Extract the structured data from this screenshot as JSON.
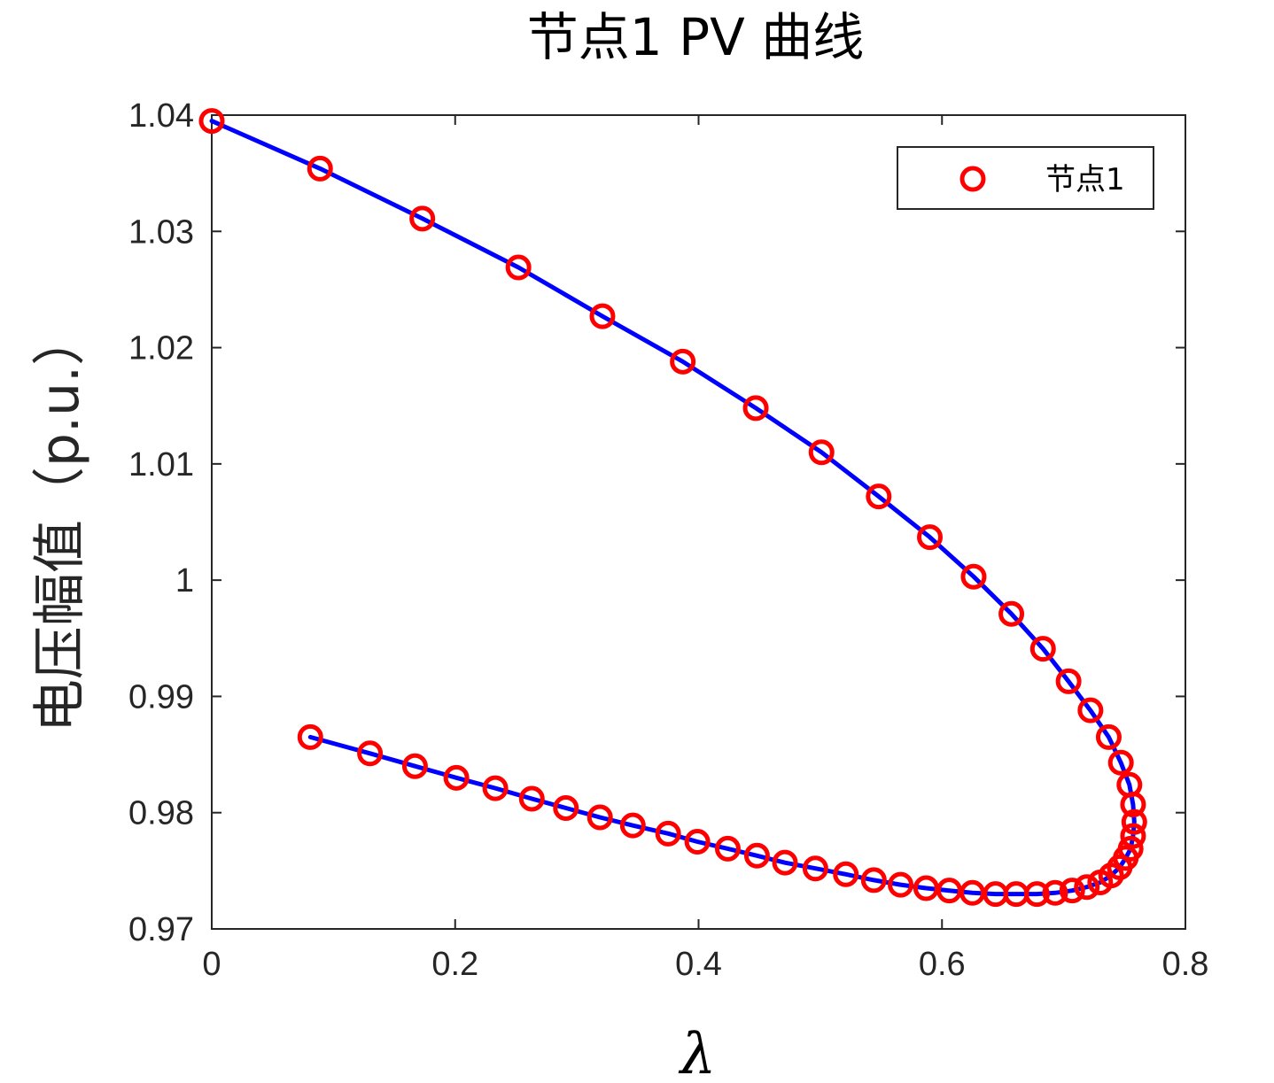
{
  "chart_data": {
    "type": "line",
    "title": "节点1 PV 曲线",
    "xlabel": "λ",
    "ylabel": "电压幅值（p.u.）",
    "xlim": [
      0,
      0.8
    ],
    "ylim": [
      0.97,
      1.04
    ],
    "xticks": [
      0,
      0.2,
      0.4,
      0.6,
      0.8
    ],
    "xtick_labels": [
      "0",
      "0.2",
      "0.4",
      "0.6",
      "0.8"
    ],
    "yticks": [
      0.97,
      0.98,
      0.99,
      1.0,
      1.01,
      1.02,
      1.03,
      1.04
    ],
    "ytick_labels": [
      "0.97",
      "0.98",
      "0.99",
      "1",
      "1.01",
      "1.02",
      "1.03",
      "1.04"
    ],
    "grid": false,
    "legend": {
      "position": "top-right",
      "entries": [
        "节点1"
      ]
    },
    "colors": {
      "markers": "#ff0000",
      "curve": "#0000ff",
      "axes": "#262626"
    },
    "series": [
      {
        "name": "节点1",
        "style": "markers",
        "marker": "circle",
        "x": [
          0.0,
          0.089,
          0.173,
          0.252,
          0.321,
          0.387,
          0.447,
          0.501,
          0.548,
          0.59,
          0.626,
          0.657,
          0.683,
          0.704,
          0.722,
          0.737,
          0.747,
          0.754,
          0.757,
          0.758,
          0.757,
          0.755,
          0.751,
          0.746,
          0.739,
          0.73,
          0.719,
          0.707,
          0.693,
          0.678,
          0.661,
          0.644,
          0.625,
          0.606,
          0.587,
          0.566,
          0.544,
          0.521,
          0.496,
          0.471,
          0.448,
          0.424,
          0.399,
          0.375,
          0.346,
          0.319,
          0.291,
          0.263,
          0.233,
          0.201,
          0.167,
          0.13,
          0.081
        ],
        "y": [
          1.0395,
          1.0354,
          1.0311,
          1.0269,
          1.0227,
          1.0188,
          1.0148,
          1.011,
          1.0072,
          1.0037,
          1.0003,
          0.9971,
          0.9941,
          0.9913,
          0.9888,
          0.9865,
          0.9843,
          0.9824,
          0.9807,
          0.9792,
          0.978,
          0.9769,
          0.9761,
          0.9753,
          0.9746,
          0.974,
          0.9736,
          0.9733,
          0.9731,
          0.973,
          0.973,
          0.973,
          0.9731,
          0.9733,
          0.9735,
          0.9738,
          0.9742,
          0.9747,
          0.9752,
          0.9757,
          0.9763,
          0.9769,
          0.9775,
          0.9782,
          0.9789,
          0.9796,
          0.9804,
          0.9812,
          0.9821,
          0.983,
          0.984,
          0.9851,
          0.9865
        ]
      },
      {
        "name": "",
        "style": "line",
        "x": [
          0.0,
          0.089,
          0.173,
          0.252,
          0.321,
          0.387,
          0.447,
          0.501,
          0.548,
          0.59,
          0.626,
          0.657,
          0.683,
          0.704,
          0.722,
          0.737,
          0.747,
          0.754,
          0.757,
          0.758,
          0.757,
          0.755,
          0.751,
          0.746,
          0.739,
          0.73,
          0.719,
          0.707,
          0.693,
          0.678,
          0.661,
          0.644,
          0.625,
          0.606,
          0.587,
          0.566,
          0.544,
          0.521,
          0.496,
          0.471,
          0.448,
          0.424,
          0.399,
          0.375,
          0.346,
          0.319,
          0.291,
          0.263,
          0.233,
          0.201,
          0.167,
          0.13,
          0.081
        ],
        "y": [
          1.0395,
          1.0354,
          1.0311,
          1.0269,
          1.0227,
          1.0188,
          1.0148,
          1.011,
          1.0072,
          1.0037,
          1.0003,
          0.9971,
          0.9941,
          0.9913,
          0.9888,
          0.9865,
          0.9843,
          0.9824,
          0.9807,
          0.9792,
          0.978,
          0.9769,
          0.9761,
          0.9753,
          0.9746,
          0.974,
          0.9736,
          0.9733,
          0.9731,
          0.973,
          0.973,
          0.973,
          0.9731,
          0.9733,
          0.9735,
          0.9738,
          0.9742,
          0.9747,
          0.9752,
          0.9757,
          0.9763,
          0.9769,
          0.9775,
          0.9782,
          0.9789,
          0.9796,
          0.9804,
          0.9812,
          0.9821,
          0.983,
          0.984,
          0.9851,
          0.9865
        ]
      }
    ]
  }
}
